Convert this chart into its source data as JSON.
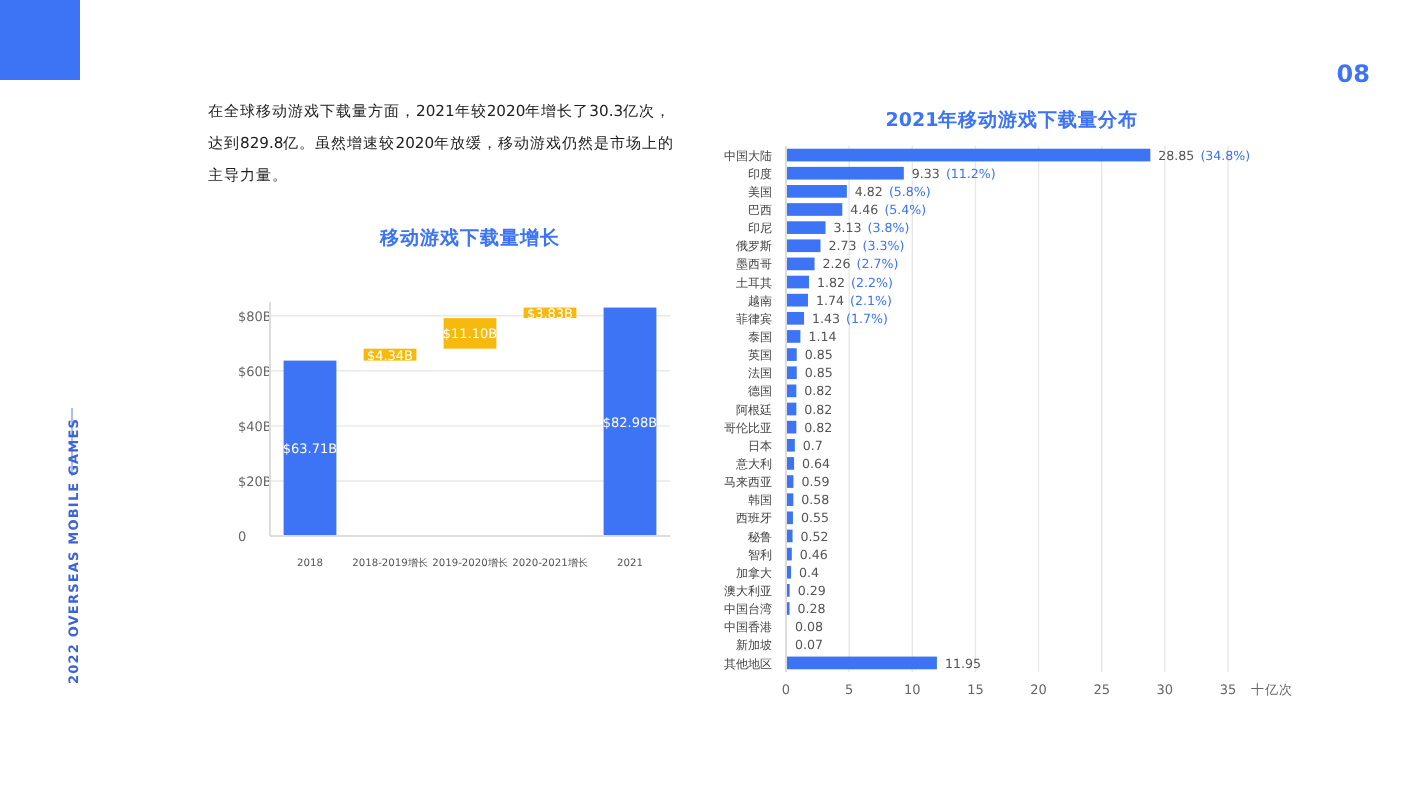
{
  "chart_data": [
    {
      "type": "bar",
      "title": "移动游戏下载量增长",
      "annotations": [
        "在全球移动游戏下载量方面，2021年较2020年增长了30.3亿次，达到829.8亿。虽然增速较2020年放缓，移动游戏仍然是市场上的主导力量。",
        "2022 OVERSEAS MOBILE GAMES"
      ],
      "categories": [
        "2018",
        "2018-2019增长",
        "2019-2020增长",
        "2020-2021增长",
        "2021"
      ],
      "values": [
        63.71,
        4.34,
        11.1,
        3.83,
        82.98
      ],
      "base": [
        0,
        63.71,
        68.05,
        79.15,
        0
      ],
      "colors": [
        "#3d74f6",
        "#f6b90f",
        "#f6b90f",
        "#f6b90f",
        "#3d74f6"
      ],
      "value_labels": [
        "$63.71B",
        "$4.34B",
        "$11.10B",
        "$3.83B",
        "$82.98B"
      ],
      "ylim": [
        0,
        85
      ],
      "yticks": [
        0,
        {
          "value": 20,
          "label": "$20B"
        },
        {
          "value": 40,
          "label": "$40B"
        },
        {
          "value": 60,
          "label": "$60B"
        },
        {
          "value": 80,
          "label": "$80B"
        }
      ],
      "grid": "y"
    },
    {
      "type": "bar",
      "orientation": "horizontal",
      "title": "2021年移动游戏下载量分布",
      "xlabel": "十亿次",
      "annotations": [
        "08"
      ],
      "categories": [
        "中国大陆",
        "印度",
        "美国",
        "巴西",
        "印尼",
        "俄罗斯",
        "墨西哥",
        "土耳其",
        "越南",
        "菲律宾",
        "泰国",
        "英国",
        "法国",
        "德国",
        "阿根廷",
        "哥伦比亚",
        "日本",
        "意大利",
        "马来西亚",
        "韩国",
        "西班牙",
        "秘鲁",
        "智利",
        "加拿大",
        "澳大利亚",
        "中国台湾",
        "中国香港",
        "新加坡",
        "其他地区"
      ],
      "values": [
        28.85,
        9.33,
        4.82,
        4.46,
        3.13,
        2.73,
        2.26,
        1.82,
        1.74,
        1.43,
        1.14,
        0.85,
        0.85,
        0.82,
        0.82,
        0.82,
        0.7,
        0.64,
        0.59,
        0.58,
        0.55,
        0.52,
        0.46,
        0.4,
        0.29,
        0.28,
        0.08,
        0.07,
        11.95
      ],
      "color": "#3d74f6",
      "value_labels": [
        "28.85 (34.8%)",
        "9.33 (11.2%)",
        "4.82 (5.8%)",
        "4.46 (5.4%)",
        "3.13 (3.8%)",
        "2.73 (3.3%)",
        "2.26 (2.7%)",
        "1.82 (2.2%)",
        "1.74 (2.1%)",
        "1.43 (1.7%)",
        "1.14",
        "0.85",
        "0.85",
        "0.82",
        "0.82",
        "0.82",
        "0.7",
        "0.64",
        "0.59",
        "0.58",
        "0.55",
        "0.52",
        "0.46",
        "0.4",
        "0.29",
        "0.28",
        "0.08",
        "0.07",
        "11.95"
      ],
      "xlim": [
        0,
        35
      ],
      "xticks": [
        0,
        5,
        10,
        15,
        20,
        25,
        30,
        35
      ],
      "grid": "x"
    }
  ]
}
